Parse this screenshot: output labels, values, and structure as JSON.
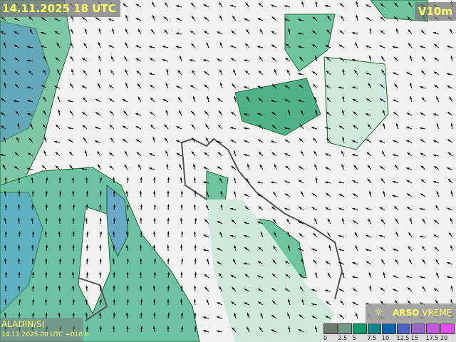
{
  "header": {
    "valid_time": "14.11.2025 18 UTC",
    "parameter": "V10m"
  },
  "footer": {
    "model": "ALADIN/SI",
    "run_info": "14.11.2025 00 UTC +018 h"
  },
  "logo": {
    "icon": "sun-icon",
    "brand_bold": "ARSO",
    "brand_light": "VREME"
  },
  "legend": {
    "unit_hint": "",
    "ticks": [
      "0",
      "2.5",
      "5",
      "7.5",
      "10",
      "12.5",
      "15",
      "17.5",
      "20"
    ],
    "colors": [
      "#6b7a6e",
      "#6f9a86",
      "#119a6c",
      "#11858c",
      "#0d64ae",
      "#4d62c0",
      "#9a64c8",
      "#c058dc",
      "#e04ef0"
    ]
  },
  "map_colors": {
    "land": "#f2f2f2",
    "low_wind": "#cfe8dc",
    "mid_wind": "#6fc4a0",
    "strong_wind": "#2a9a8a",
    "sea_wind": "#5aaeb0",
    "contour": "#1f6b2c",
    "border": "#555555"
  }
}
